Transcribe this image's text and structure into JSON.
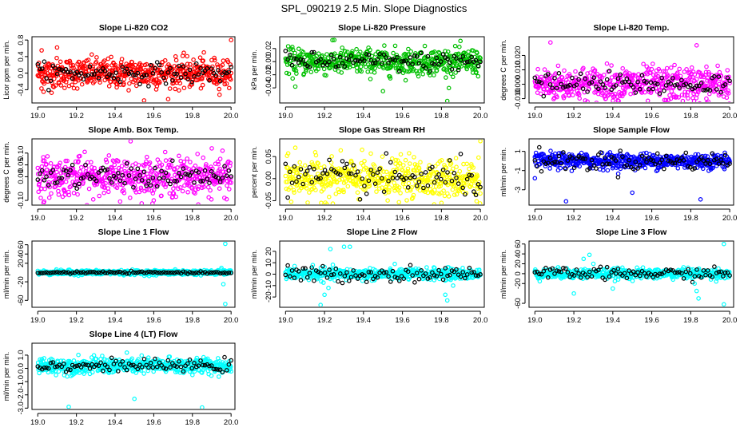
{
  "title": "SPL_090219  2.5 Min. Slope Diagnostics",
  "chart_data": [
    {
      "type": "scatter",
      "title": "Slope Li-820 CO2",
      "ylabel": "Licor ppm per min.",
      "color": "#ff0000",
      "xlim": [
        18.97,
        20.02
      ],
      "ylim": [
        -0.72,
        0.88
      ],
      "xticks": [
        "19.0",
        "19.2",
        "19.4",
        "19.6",
        "19.8",
        "20.0"
      ],
      "xtick_values": [
        19.0,
        19.2,
        19.4,
        19.6,
        19.8,
        20.0
      ],
      "yticks": [
        "-0.4",
        "0.0",
        "0.4",
        "0.8"
      ],
      "ytick_values": [
        -0.4,
        0.0,
        0.4,
        0.8
      ],
      "y_center": 0.0,
      "y_spread": 0.18,
      "black_spread": 0.12,
      "outliers": [
        [
          19.02,
          0.55
        ],
        [
          19.1,
          0.62
        ],
        [
          19.55,
          -0.66
        ],
        [
          20.0,
          0.8
        ],
        [
          19.03,
          -0.45
        ]
      ]
    },
    {
      "type": "scatter",
      "title": "Slope Li-820 Pressure",
      "ylabel": "kPa per min.",
      "color": "#00c000",
      "xlim": [
        18.97,
        20.02
      ],
      "ylim": [
        -0.063,
        0.038
      ],
      "xticks": [
        "19.0",
        "19.2",
        "19.4",
        "19.6",
        "19.8",
        "20.0"
      ],
      "xtick_values": [
        19.0,
        19.2,
        19.4,
        19.6,
        19.8,
        20.0
      ],
      "yticks": [
        "-0.04",
        "-0.02",
        "0.00",
        "0.02"
      ],
      "ytick_values": [
        -0.04,
        -0.02,
        0.0,
        0.02
      ],
      "y_center": 0.0,
      "y_spread": 0.01,
      "black_spread": 0.007,
      "outliers": [
        [
          19.83,
          -0.06
        ],
        [
          19.25,
          0.033
        ],
        [
          19.5,
          -0.045
        ],
        [
          19.05,
          -0.038
        ]
      ]
    },
    {
      "type": "scatter",
      "title": "Slope Li-820 Temp.",
      "ylabel": "degrees C per min.",
      "color": "#ff00ff",
      "xlim": [
        18.97,
        20.02
      ],
      "ylim": [
        -0.013,
        0.033
      ],
      "xticks": [
        "19.0",
        "19.2",
        "19.4",
        "19.6",
        "19.8",
        "20.0"
      ],
      "xtick_values": [
        19.0,
        19.2,
        19.4,
        19.6,
        19.8,
        20.0
      ],
      "yticks": [
        "-0.010",
        "0.000",
        "0.010",
        "0.020"
      ],
      "ytick_values": [
        -0.01,
        0.0,
        0.01,
        0.02
      ],
      "y_center": 0.0,
      "y_spread": 0.006,
      "black_spread": 0.004,
      "outliers": [
        [
          19.08,
          0.029
        ],
        [
          19.27,
          -0.012
        ],
        [
          19.83,
          0.027
        ],
        [
          19.88,
          -0.01
        ]
      ]
    },
    {
      "type": "scatter",
      "title": "Slope Amb. Box Temp.",
      "ylabel": "degrees C per min.",
      "color": "#ff00ff",
      "xlim": [
        18.97,
        20.02
      ],
      "ylim": [
        -0.12,
        0.16
      ],
      "xticks": [
        "19.0",
        "19.2",
        "19.4",
        "19.6",
        "19.8",
        "20.0"
      ],
      "xtick_values": [
        19.0,
        19.2,
        19.4,
        19.6,
        19.8,
        20.0
      ],
      "yticks": [
        "-0.10",
        "0.00",
        "0.05",
        "0.10"
      ],
      "ytick_values": [
        -0.1,
        0.0,
        0.05,
        0.1
      ],
      "y_center": 0.0,
      "y_spread": 0.04,
      "black_spread": 0.025,
      "outliers": [
        [
          19.48,
          0.15
        ],
        [
          19.03,
          -0.11
        ],
        [
          19.6,
          -0.1
        ],
        [
          19.9,
          0.12
        ]
      ]
    },
    {
      "type": "scatter",
      "title": "Slope Gas Stream RH",
      "ylabel": "percent per min.",
      "color": "#ffff00",
      "xlim": [
        18.97,
        20.02
      ],
      "ylim": [
        -0.06,
        0.09
      ],
      "xticks": [
        "19.0",
        "19.2",
        "19.4",
        "19.6",
        "19.8",
        "20.0"
      ],
      "xtick_values": [
        19.0,
        19.2,
        19.4,
        19.6,
        19.8,
        20.0
      ],
      "yticks": [
        "-0.05",
        "0.00",
        "0.05"
      ],
      "ytick_values": [
        -0.05,
        0.0,
        0.05
      ],
      "y_center": 0.0,
      "y_spread": 0.022,
      "black_spread": 0.02,
      "outliers": [
        [
          20.0,
          0.085
        ],
        [
          19.05,
          0.07
        ],
        [
          19.8,
          -0.055
        ]
      ]
    },
    {
      "type": "scatter",
      "title": "Slope Sample Flow",
      "ylabel": "ml/min per min.",
      "color": "#0000ff",
      "xlim": [
        18.97,
        20.02
      ],
      "ylim": [
        -4.6,
        2.3
      ],
      "xticks": [
        "19.0",
        "19.2",
        "19.4",
        "19.6",
        "19.8",
        "20.0"
      ],
      "xtick_values": [
        19.0,
        19.2,
        19.4,
        19.6,
        19.8,
        20.0
      ],
      "yticks": [
        "-3",
        "-1",
        "1"
      ],
      "ytick_values": [
        -3,
        -1,
        1
      ],
      "y_center": 0.0,
      "y_spread": 0.4,
      "black_spread": 0.5,
      "outliers": [
        [
          19.16,
          -4.2
        ],
        [
          19.5,
          -3.3
        ],
        [
          19.85,
          -4.0
        ],
        [
          19.0,
          -1.8
        ]
      ]
    },
    {
      "type": "scatter",
      "title": "Slope Line 1 Flow",
      "ylabel": "ml/min per min.",
      "color": "#00ffff",
      "xlim": [
        18.97,
        20.02
      ],
      "ylim": [
        -75,
        68
      ],
      "xticks": [
        "19.0",
        "19.2",
        "19.4",
        "19.6",
        "19.8",
        "20.0"
      ],
      "xtick_values": [
        19.0,
        19.2,
        19.4,
        19.6,
        19.8,
        20.0
      ],
      "yticks": [
        "-60",
        "-20",
        "20",
        "40",
        "60"
      ],
      "ytick_values": [
        -60,
        -20,
        20,
        40,
        60
      ],
      "y_center": 0.0,
      "y_spread": 2.5,
      "black_spread": 1.0,
      "outliers": [
        [
          19.97,
          62
        ],
        [
          19.97,
          -68
        ],
        [
          19.96,
          -25
        ],
        [
          19.95,
          10
        ]
      ]
    },
    {
      "type": "scatter",
      "title": "Slope Line 2 Flow",
      "ylabel": "ml/min per min.",
      "color": "#00ffff",
      "xlim": [
        18.97,
        20.02
      ],
      "ylim": [
        -29,
        29
      ],
      "xticks": [
        "19.0",
        "19.2",
        "19.4",
        "19.6",
        "19.8",
        "20.0"
      ],
      "xtick_values": [
        19.0,
        19.2,
        19.4,
        19.6,
        19.8,
        20.0
      ],
      "yticks": [
        "-20",
        "-10",
        "0",
        "10",
        "20"
      ],
      "ytick_values": [
        -20,
        -10,
        0,
        10,
        20
      ],
      "y_center": 0.0,
      "y_spread": 2.5,
      "black_spread": 3.5,
      "outliers": [
        [
          19.18,
          -27
        ],
        [
          19.2,
          -18
        ],
        [
          19.23,
          22
        ],
        [
          19.3,
          24
        ],
        [
          19.33,
          24
        ],
        [
          19.83,
          -23
        ],
        [
          19.82,
          -18
        ],
        [
          19.86,
          -10
        ],
        [
          19.14,
          8
        ],
        [
          19.22,
          -12
        ]
      ]
    },
    {
      "type": "scatter",
      "title": "Slope Line 3 Flow",
      "ylabel": "ml/min per min.",
      "color": "#00ffff",
      "xlim": [
        18.97,
        20.02
      ],
      "ylim": [
        -68,
        66
      ],
      "xticks": [
        "19.0",
        "19.2",
        "19.4",
        "19.6",
        "19.8",
        "20.0"
      ],
      "xtick_values": [
        19.0,
        19.2,
        19.4,
        19.6,
        19.8,
        20.0
      ],
      "yticks": [
        "-60",
        "-20",
        "0",
        "20",
        "40",
        "60"
      ],
      "ytick_values": [
        -60,
        -20,
        0,
        20,
        40,
        60
      ],
      "y_center": 0.0,
      "y_spread": 5,
      "black_spread": 6,
      "outliers": [
        [
          19.97,
          -62
        ],
        [
          19.97,
          60
        ],
        [
          19.84,
          -50
        ],
        [
          19.83,
          -35
        ],
        [
          19.2,
          -40
        ],
        [
          19.25,
          30
        ],
        [
          19.28,
          38
        ],
        [
          19.3,
          20
        ],
        [
          19.82,
          -20
        ],
        [
          19.4,
          -30
        ]
      ]
    },
    {
      "type": "scatter",
      "title": "Slope Line 4 (LT) Flow",
      "ylabel": "ml/min per min.",
      "color": "#00ffff",
      "xlim": [
        18.97,
        20.02
      ],
      "ylim": [
        -3.1,
        1.9
      ],
      "xticks": [
        "19.0",
        "19.2",
        "19.4",
        "19.6",
        "19.8",
        "20.0"
      ],
      "xtick_values": [
        19.0,
        19.2,
        19.4,
        19.6,
        19.8,
        20.0
      ],
      "yticks": [
        "-3.0",
        "-2.0",
        "-1.0",
        "0.0",
        "1.0"
      ],
      "ytick_values": [
        -3.0,
        -2.0,
        -1.0,
        0.0,
        1.0
      ],
      "y_center": 0.2,
      "y_spread": 0.3,
      "black_spread": 0.2,
      "outliers": [
        [
          19.16,
          -2.9
        ],
        [
          19.5,
          -2.3
        ],
        [
          19.85,
          -2.95
        ],
        [
          19.18,
          -0.5
        ],
        [
          19.8,
          -0.5
        ]
      ]
    }
  ]
}
